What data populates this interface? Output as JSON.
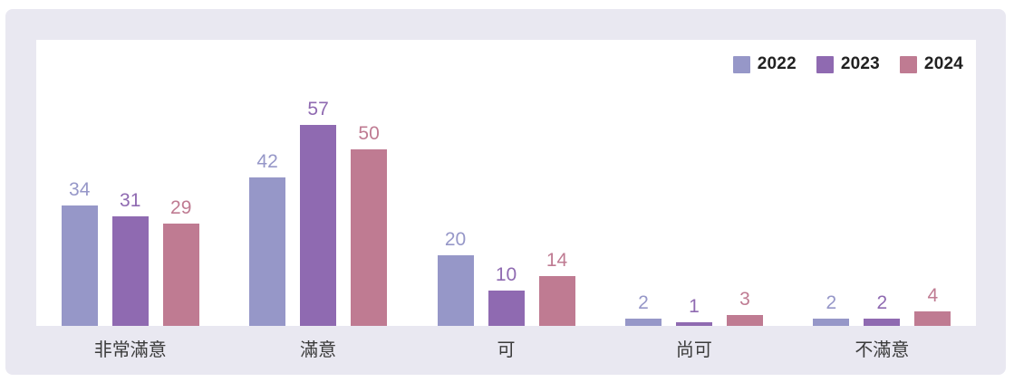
{
  "chart_data": {
    "type": "bar",
    "categories": [
      "非常滿意",
      "滿意",
      "可",
      "尚可",
      "不滿意"
    ],
    "series": [
      {
        "name": "2022",
        "color": "#9697c8",
        "values": [
          34,
          42,
          20,
          2,
          2
        ]
      },
      {
        "name": "2023",
        "color": "#8f6ab1",
        "values": [
          31,
          57,
          10,
          1,
          2
        ]
      },
      {
        "name": "2024",
        "color": "#bf7b92",
        "values": [
          29,
          50,
          14,
          3,
          4
        ]
      }
    ],
    "title": "",
    "xlabel": "",
    "ylabel": "",
    "ylim": [
      0,
      60
    ],
    "grid": false,
    "legend_position": "top-right",
    "value_labels": true
  },
  "colors": {
    "page_bg": "#ffffff",
    "card_bg": "#e9e8f1",
    "plot_bg": "#ffffff",
    "category_label_text": "#3b3b3b",
    "legend_text": "#212121"
  }
}
